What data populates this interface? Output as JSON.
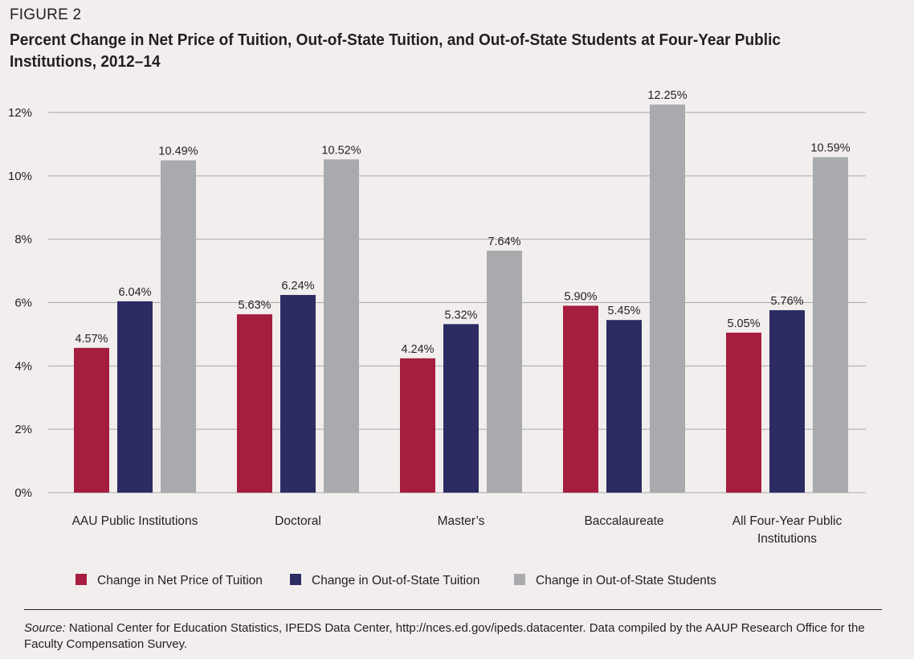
{
  "figure_label": "FIGURE 2",
  "title": "Percent Change in Net Price of Tuition, Out-of-State Tuition, and Out-of-State Students at Four-Year Public Institutions, 2012–14",
  "source": {
    "lead": "Source:",
    "text": " National Center for Education Statistics, IPEDS Data Center, http://nces.ed.gov/ipeds.datacenter. Data compiled by the AAUP Research Office for the Faculty Compensation Survey."
  },
  "colors": {
    "net_price": "#a61e3f",
    "out_state_tuition": "#2c2c63",
    "out_state_students": "#a9aaad",
    "grid": "#a9a9a9"
  },
  "chart_data": {
    "type": "bar",
    "categories": [
      [
        "AAU Public Institutions"
      ],
      [
        "Doctoral"
      ],
      [
        "Master’s"
      ],
      [
        "Baccalaureate"
      ],
      [
        "All Four-Year Public",
        "Institutions"
      ]
    ],
    "series": [
      {
        "name": "Change in Net Price of Tuition",
        "values": [
          4.57,
          5.63,
          4.24,
          5.9,
          5.05
        ],
        "labels": [
          "4.57%",
          "5.63%",
          "4.24%",
          "5.90%",
          "5.05%"
        ]
      },
      {
        "name": "Change in Out-of-State Tuition",
        "values": [
          6.04,
          6.24,
          5.32,
          5.45,
          5.76
        ],
        "labels": [
          "6.04%",
          "6.24%",
          "5.32%",
          "5.45%",
          "5.76%"
        ]
      },
      {
        "name": "Change in Out-of-State Students",
        "values": [
          10.49,
          10.52,
          7.64,
          12.25,
          10.59
        ],
        "labels": [
          "10.49%",
          "10.52%",
          "7.64%",
          "12.25%",
          "10.59%"
        ]
      }
    ],
    "yticks": [
      0,
      2,
      4,
      6,
      8,
      10,
      12
    ],
    "ytick_labels": [
      "0%",
      "2%",
      "4%",
      "6%",
      "8%",
      "10%",
      "12%"
    ],
    "ylim": [
      0,
      12
    ],
    "grid": true,
    "legend_position": "bottom"
  }
}
